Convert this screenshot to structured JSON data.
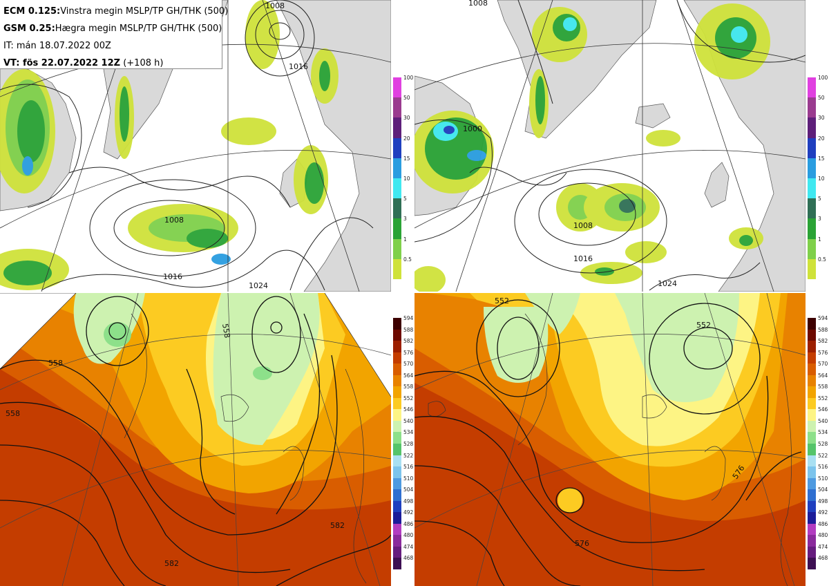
{
  "header": {
    "line1_bold": "ECM 0.125:",
    "line1_rest": "Vinstra megin MSLP/TP GH/THK (500)",
    "line2_bold": "GSM 0.25:",
    "line2_rest": "Hægra megin MSLP/TP GH/THK (500)",
    "line3": "IT: mán 18.07.2022 00Z",
    "line4_bold": "VT: fös 22.07.2022 12Z",
    "line4_rest": " (+108 h)"
  },
  "precip_colorbar": {
    "labels": [
      "100",
      "50",
      "30",
      "20",
      "15",
      "10",
      "5",
      "3",
      "1",
      "0.5"
    ],
    "colors": [
      "#e040e0",
      "#9a3b8f",
      "#5e1f7a",
      "#1f3fbf",
      "#2a9de0",
      "#40e8f0",
      "#2f6f55",
      "#2aa335",
      "#7fd04a",
      "#cfe23a"
    ]
  },
  "thk_colorbar": {
    "labels": [
      "594",
      "588",
      "582",
      "576",
      "570",
      "564",
      "558",
      "552",
      "546",
      "540",
      "534",
      "528",
      "522",
      "516",
      "510",
      "504",
      "498",
      "492",
      "486",
      "480",
      "474",
      "468"
    ],
    "colors": [
      "#3d0000",
      "#6e0a00",
      "#9c1f00",
      "#c43d00",
      "#d95d00",
      "#e88200",
      "#f2a400",
      "#fccb22",
      "#fdf484",
      "#cdf2b0",
      "#8de08a",
      "#55c46a",
      "#a9e0f2",
      "#7cc4ec",
      "#4e9ae0",
      "#2f6fd0",
      "#1f3fbf",
      "#1c1c99",
      "#b23cc0",
      "#8a2a9c",
      "#661c7e",
      "#3d0f52"
    ]
  },
  "contour_labels": {
    "tl": [
      "1016",
      "1008",
      "1016",
      "1024",
      "1008"
    ],
    "tr": [
      "1008",
      "1016",
      "1024",
      "1000",
      "1008"
    ],
    "bl": [
      "558",
      "558",
      "558",
      "582",
      "582"
    ],
    "br": [
      "552",
      "552",
      "576",
      "576"
    ]
  }
}
